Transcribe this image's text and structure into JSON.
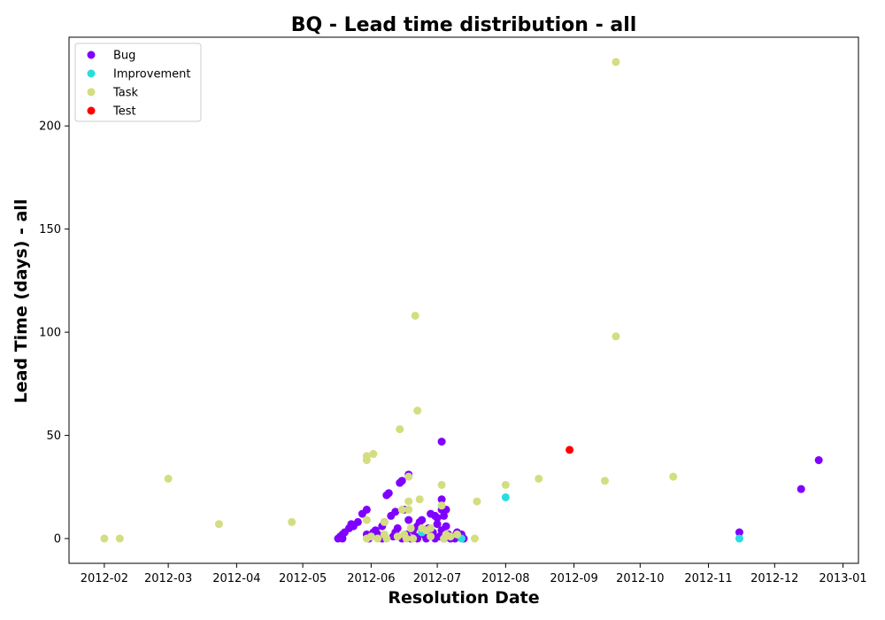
{
  "chart_data": {
    "type": "scatter",
    "title": "BQ - Lead time distribution - all",
    "xlabel": "Resolution Date",
    "ylabel": "Lead Time (days) - all",
    "x_axis_type": "date",
    "xlim": [
      "2012-01-16",
      "2013-01-08"
    ],
    "ylim": [
      -12,
      243
    ],
    "xticks": [
      "2012-02",
      "2012-03",
      "2012-04",
      "2012-05",
      "2012-06",
      "2012-07",
      "2012-08",
      "2012-09",
      "2012-10",
      "2012-11",
      "2012-12",
      "2013-01"
    ],
    "yticks": [
      0,
      50,
      100,
      150,
      200
    ],
    "grid": false,
    "legend_position": "top-left",
    "series": [
      {
        "name": "Bug",
        "color": "#8000ff",
        "points": [
          [
            "2012-05-17",
            0
          ],
          [
            "2012-05-18",
            1
          ],
          [
            "2012-05-19",
            2
          ],
          [
            "2012-05-19",
            0
          ],
          [
            "2012-05-20",
            3
          ],
          [
            "2012-05-22",
            5
          ],
          [
            "2012-05-23",
            7
          ],
          [
            "2012-05-24",
            6
          ],
          [
            "2012-05-26",
            8
          ],
          [
            "2012-05-28",
            12
          ],
          [
            "2012-05-30",
            14
          ],
          [
            "2012-05-30",
            2
          ],
          [
            "2012-05-31",
            0
          ],
          [
            "2012-06-01",
            1
          ],
          [
            "2012-06-02",
            3
          ],
          [
            "2012-06-03",
            4
          ],
          [
            "2012-06-04",
            2
          ],
          [
            "2012-06-06",
            0
          ],
          [
            "2012-06-06",
            6
          ],
          [
            "2012-06-07",
            8
          ],
          [
            "2012-06-08",
            21
          ],
          [
            "2012-06-09",
            22
          ],
          [
            "2012-06-10",
            11
          ],
          [
            "2012-06-11",
            1
          ],
          [
            "2012-06-12",
            13
          ],
          [
            "2012-06-12",
            3
          ],
          [
            "2012-06-13",
            5
          ],
          [
            "2012-06-14",
            27
          ],
          [
            "2012-06-15",
            28
          ],
          [
            "2012-06-15",
            0
          ],
          [
            "2012-06-16",
            14
          ],
          [
            "2012-06-17",
            2
          ],
          [
            "2012-06-18",
            31
          ],
          [
            "2012-06-18",
            9
          ],
          [
            "2012-06-19",
            0
          ],
          [
            "2012-06-20",
            4
          ],
          [
            "2012-06-21",
            1
          ],
          [
            "2012-06-22",
            6
          ],
          [
            "2012-06-22",
            0
          ],
          [
            "2012-06-23",
            8
          ],
          [
            "2012-06-24",
            9
          ],
          [
            "2012-06-25",
            2
          ],
          [
            "2012-06-26",
            0
          ],
          [
            "2012-06-27",
            5
          ],
          [
            "2012-06-28",
            12
          ],
          [
            "2012-06-29",
            3
          ],
          [
            "2012-06-30",
            11
          ],
          [
            "2012-06-30",
            0
          ],
          [
            "2012-07-01",
            7
          ],
          [
            "2012-07-01",
            10
          ],
          [
            "2012-07-02",
            1
          ],
          [
            "2012-07-03",
            47
          ],
          [
            "2012-07-03",
            19
          ],
          [
            "2012-07-03",
            14
          ],
          [
            "2012-07-03",
            4
          ],
          [
            "2012-07-04",
            0
          ],
          [
            "2012-07-04",
            11
          ],
          [
            "2012-07-05",
            14
          ],
          [
            "2012-07-05",
            6
          ],
          [
            "2012-07-06",
            2
          ],
          [
            "2012-07-07",
            0
          ],
          [
            "2012-07-08",
            1
          ],
          [
            "2012-07-09",
            0
          ],
          [
            "2012-07-10",
            3
          ],
          [
            "2012-07-11",
            1
          ],
          [
            "2012-07-12",
            2
          ],
          [
            "2012-07-13",
            0
          ],
          [
            "2012-11-15",
            3
          ],
          [
            "2012-12-13",
            24
          ],
          [
            "2012-12-21",
            38
          ]
        ]
      },
      {
        "name": "Improvement",
        "color": "#2adddd",
        "points": [
          [
            "2012-06-24",
            3
          ],
          [
            "2012-07-12",
            0
          ],
          [
            "2012-08-01",
            20
          ],
          [
            "2012-11-15",
            0
          ]
        ]
      },
      {
        "name": "Task",
        "color": "#d4dd80",
        "points": [
          [
            "2012-02-01",
            0
          ],
          [
            "2012-02-08",
            0
          ],
          [
            "2012-03-01",
            29
          ],
          [
            "2012-03-24",
            7
          ],
          [
            "2012-04-26",
            8
          ],
          [
            "2012-05-30",
            0
          ],
          [
            "2012-05-30",
            40
          ],
          [
            "2012-05-30",
            38
          ],
          [
            "2012-05-30",
            9
          ],
          [
            "2012-06-01",
            1
          ],
          [
            "2012-06-02",
            41
          ],
          [
            "2012-06-04",
            0
          ],
          [
            "2012-06-07",
            2
          ],
          [
            "2012-06-07",
            8
          ],
          [
            "2012-06-08",
            0
          ],
          [
            "2012-06-13",
            1
          ],
          [
            "2012-06-14",
            53
          ],
          [
            "2012-06-15",
            14
          ],
          [
            "2012-06-16",
            2
          ],
          [
            "2012-06-17",
            0
          ],
          [
            "2012-06-18",
            30
          ],
          [
            "2012-06-18",
            18
          ],
          [
            "2012-06-18",
            14
          ],
          [
            "2012-06-19",
            5
          ],
          [
            "2012-06-20",
            0
          ],
          [
            "2012-06-21",
            108
          ],
          [
            "2012-06-22",
            62
          ],
          [
            "2012-06-23",
            19
          ],
          [
            "2012-06-24",
            5
          ],
          [
            "2012-06-26",
            4
          ],
          [
            "2012-06-28",
            1
          ],
          [
            "2012-06-28",
            5
          ],
          [
            "2012-07-03",
            26
          ],
          [
            "2012-07-03",
            16
          ],
          [
            "2012-07-04",
            0
          ],
          [
            "2012-07-05",
            2
          ],
          [
            "2012-07-07",
            1
          ],
          [
            "2012-07-10",
            2
          ],
          [
            "2012-07-18",
            0
          ],
          [
            "2012-07-19",
            18
          ],
          [
            "2012-08-01",
            26
          ],
          [
            "2012-08-16",
            29
          ],
          [
            "2012-09-15",
            28
          ],
          [
            "2012-09-20",
            231
          ],
          [
            "2012-09-20",
            98
          ],
          [
            "2012-10-16",
            30
          ]
        ]
      },
      {
        "name": "Test",
        "color": "#ff0000",
        "points": [
          [
            "2012-08-30",
            43
          ]
        ]
      }
    ]
  }
}
